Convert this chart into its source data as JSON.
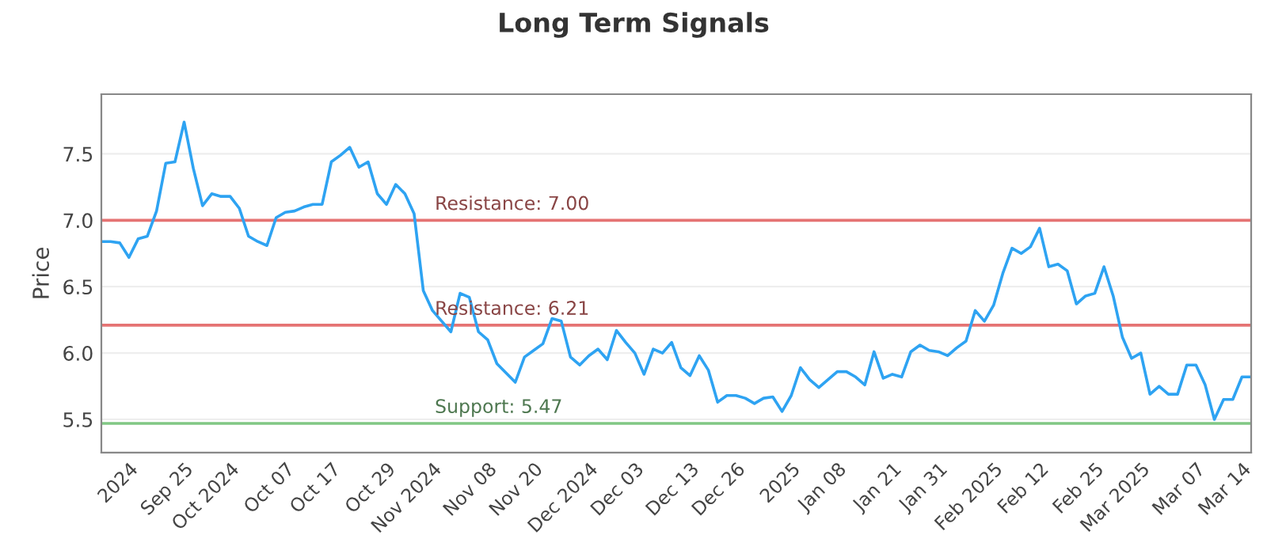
{
  "chart_data": {
    "type": "line",
    "title": "Long Term Signals",
    "ylabel": "Price",
    "categories": [
      null,
      null,
      null,
      "2024",
      null,
      null,
      null,
      null,
      null,
      "Sep 25",
      null,
      null,
      null,
      null,
      "Oct 2024",
      null,
      null,
      null,
      null,
      null,
      "Oct 07",
      null,
      null,
      null,
      null,
      "Oct 17",
      null,
      null,
      null,
      null,
      null,
      "Oct 29",
      null,
      null,
      null,
      null,
      "Nov 2024",
      null,
      null,
      null,
      null,
      null,
      "Nov 08",
      null,
      null,
      null,
      null,
      "Nov 20",
      null,
      null,
      null,
      null,
      null,
      "Dec 2024",
      null,
      null,
      null,
      null,
      "Dec 03",
      null,
      null,
      null,
      null,
      null,
      "Dec 13",
      null,
      null,
      null,
      null,
      "Dec 26",
      null,
      null,
      null,
      null,
      null,
      "2025",
      null,
      null,
      null,
      null,
      "Jan 08",
      null,
      null,
      null,
      null,
      null,
      "Jan 21",
      null,
      null,
      null,
      null,
      "Jan 31",
      null,
      null,
      null,
      null,
      null,
      "Feb 2025",
      null,
      null,
      null,
      null,
      "Feb 12",
      null,
      null,
      null,
      null,
      null,
      "Feb 25",
      null,
      null,
      null,
      null,
      "Mar 2025",
      null,
      null,
      null,
      null,
      null,
      "Mar 07",
      null,
      null,
      null,
      null,
      "Mar 14",
      null
    ],
    "series": [
      {
        "color": "#2ea3f2",
        "values": [
          6.84,
          6.84,
          6.83,
          6.72,
          6.86,
          6.88,
          7.07,
          7.43,
          7.44,
          7.74,
          7.39,
          7.11,
          7.2,
          7.18,
          7.18,
          7.09,
          6.88,
          6.84,
          6.81,
          7.02,
          7.06,
          7.07,
          7.1,
          7.12,
          7.12,
          7.44,
          7.49,
          7.55,
          7.4,
          7.44,
          7.2,
          7.12,
          7.27,
          7.2,
          7.05,
          6.47,
          6.32,
          6.24,
          6.16,
          6.45,
          6.42,
          6.16,
          6.1,
          5.92,
          5.85,
          5.78,
          5.97,
          6.02,
          6.07,
          6.26,
          6.24,
          5.97,
          5.91,
          5.98,
          6.03,
          5.95,
          6.17,
          6.08,
          6.0,
          5.84,
          6.03,
          6.0,
          6.08,
          5.89,
          5.83,
          5.98,
          5.87,
          5.63,
          5.68,
          5.68,
          5.66,
          5.62,
          5.66,
          5.67,
          5.56,
          5.68,
          5.89,
          5.8,
          5.74,
          5.8,
          5.86,
          5.86,
          5.82,
          5.76,
          6.01,
          5.81,
          5.84,
          5.82,
          6.01,
          6.06,
          6.02,
          6.01,
          5.98,
          6.04,
          6.09,
          6.32,
          6.24,
          6.36,
          6.6,
          6.79,
          6.75,
          6.8,
          6.94,
          6.65,
          6.67,
          6.62,
          6.37,
          6.43,
          6.45,
          6.65,
          6.43,
          6.12,
          5.96,
          6.0,
          5.69,
          5.75,
          5.69,
          5.69,
          5.91,
          5.91,
          5.76,
          5.5,
          5.65,
          5.65,
          5.82,
          5.82
        ]
      }
    ],
    "ylim": [
      5.25,
      7.95
    ],
    "yticks": [
      5.5,
      {
        "value": 6,
        "label": "6.0"
      },
      6.5,
      {
        "value": 7,
        "label": "7.0"
      },
      7.5
    ],
    "grid": "y",
    "ref_lines": [
      {
        "axis": "y",
        "value": 7.0,
        "label": "Resistance: 7.00",
        "color": "#e57373"
      },
      {
        "axis": "y",
        "value": 6.21,
        "label": "Resistance: 6.21",
        "color": "#e57373"
      },
      {
        "axis": "y",
        "value": 5.47,
        "label": "Support: 5.47",
        "color": "#81c784"
      }
    ]
  }
}
